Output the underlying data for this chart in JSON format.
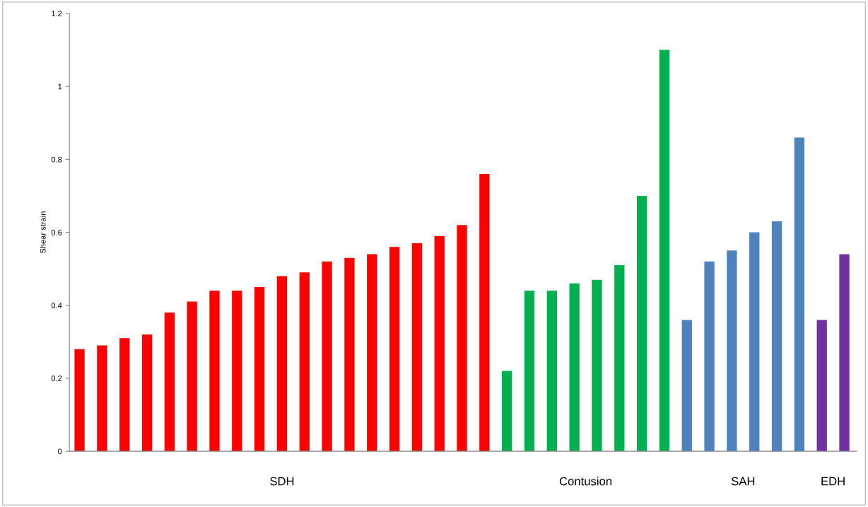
{
  "chart_data": {
    "type": "bar",
    "ylabel": "Shear strain",
    "categories": [
      null,
      null,
      null,
      null,
      null,
      null,
      null,
      null,
      null,
      null,
      null,
      null,
      null,
      null,
      null,
      null,
      null,
      null,
      null,
      null,
      null,
      null,
      null,
      null,
      null,
      null,
      null,
      null,
      null,
      null,
      null,
      null,
      null,
      null,
      null
    ],
    "series": [
      {
        "name": "SDH",
        "color": "#ff0000",
        "values": [
          0.28,
          0.29,
          0.31,
          0.32,
          0.38,
          0.41,
          0.44,
          0.44,
          0.45,
          0.48,
          0.49,
          0.52,
          0.53,
          0.54,
          0.56,
          0.57,
          0.59,
          0.62,
          0.76,
          null,
          null,
          null,
          null,
          null,
          null,
          null,
          null,
          null,
          null,
          null,
          null,
          null,
          null,
          null,
          null
        ]
      },
      {
        "name": "Contusion",
        "color": "#00b050",
        "values": [
          null,
          null,
          null,
          null,
          null,
          null,
          null,
          null,
          null,
          null,
          null,
          null,
          null,
          null,
          null,
          null,
          null,
          null,
          null,
          0.22,
          0.44,
          0.44,
          0.46,
          0.47,
          0.51,
          0.7,
          1.1,
          null,
          null,
          null,
          null,
          null,
          null,
          null,
          null
        ]
      },
      {
        "name": "SAH",
        "color": "#4f81bd",
        "values": [
          null,
          null,
          null,
          null,
          null,
          null,
          null,
          null,
          null,
          null,
          null,
          null,
          null,
          null,
          null,
          null,
          null,
          null,
          null,
          null,
          null,
          null,
          null,
          null,
          null,
          null,
          null,
          0.36,
          0.52,
          0.55,
          0.6,
          0.63,
          0.86,
          null,
          null
        ]
      },
      {
        "name": "EDH",
        "color": "#7030a0",
        "values": [
          null,
          null,
          null,
          null,
          null,
          null,
          null,
          null,
          null,
          null,
          null,
          null,
          null,
          null,
          null,
          null,
          null,
          null,
          null,
          null,
          null,
          null,
          null,
          null,
          null,
          null,
          null,
          null,
          null,
          null,
          null,
          null,
          null,
          0.36,
          0.54
        ]
      }
    ],
    "ylim": [
      0,
      1.2
    ],
    "yticks": [
      0,
      0.2,
      0.4,
      0.6,
      0.8,
      1,
      1.2
    ],
    "grid": false,
    "legend": false
  }
}
